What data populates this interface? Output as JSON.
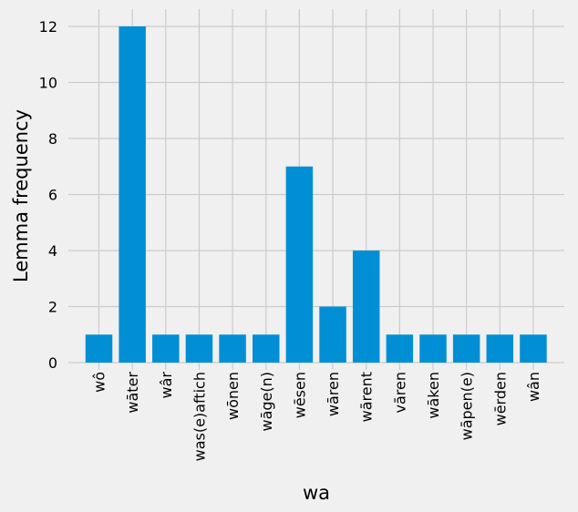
{
  "chart_data": {
    "type": "bar",
    "categories": [
      "wô",
      "wāter",
      "wâr",
      "was(e)aftich",
      "wōnen",
      "wāge(n)",
      "wēsen",
      "wāren",
      "wārent",
      "vāren",
      "wāken",
      "wāpen(e)",
      "wērden",
      "wân"
    ],
    "values": [
      1,
      12,
      1,
      1,
      1,
      1,
      7,
      2,
      4,
      1,
      1,
      1,
      1,
      1
    ],
    "title": "",
    "xlabel": "wa",
    "ylabel": "Lemma frequency",
    "ylim": [
      0,
      12.6
    ],
    "yticks": [
      0,
      2,
      4,
      6,
      8,
      10,
      12
    ],
    "grid": true,
    "bar_color": "#008fd5",
    "background_color": "#f0f0f0",
    "grid_color": "#cbcbcb"
  }
}
